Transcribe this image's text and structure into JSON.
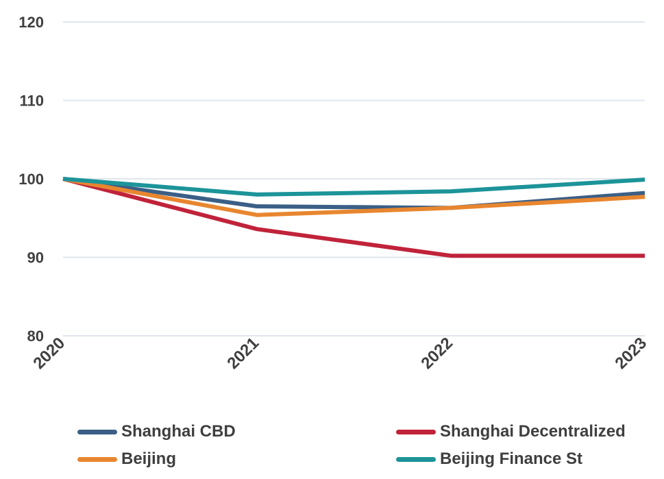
{
  "chart_data": {
    "type": "line",
    "title": "",
    "xlabel": "",
    "ylabel": "",
    "x": [
      "2020",
      "2021",
      "2022",
      "2023"
    ],
    "ylim": [
      80,
      120
    ],
    "yticks": [
      80,
      90,
      100,
      110,
      120
    ],
    "grid": true,
    "legend_position": "bottom",
    "series": [
      {
        "name": "Shanghai CBD",
        "color": "#3b5f86",
        "values": [
          100,
          96.5,
          96.3,
          98.2
        ]
      },
      {
        "name": "Shanghai Decentralized",
        "color": "#c0233a",
        "values": [
          100,
          93.6,
          90.2,
          90.2
        ]
      },
      {
        "name": "Beijing",
        "color": "#e8862f",
        "values": [
          100,
          95.4,
          96.3,
          97.7
        ]
      },
      {
        "name": "Beijing Finance St",
        "color": "#1c9499",
        "values": [
          100,
          98.0,
          98.4,
          99.9
        ]
      }
    ]
  }
}
